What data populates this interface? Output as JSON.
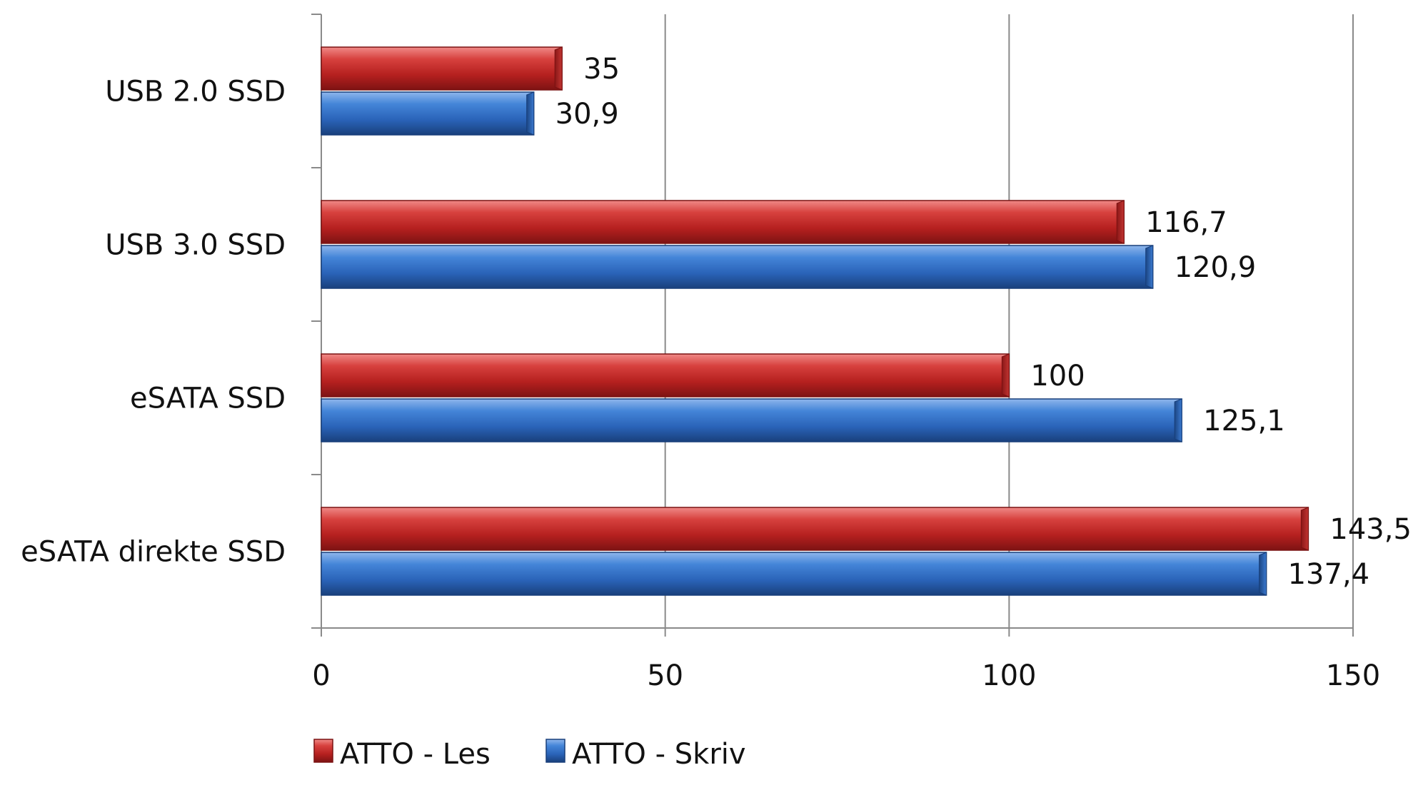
{
  "chart_data": {
    "type": "bar",
    "orientation": "horizontal",
    "style": "3d-cylinder-bars",
    "categories": [
      "USB 2.0 SSD",
      "USB 3.0 SSD",
      "eSATA SSD",
      "eSATA direkte SSD"
    ],
    "series": [
      {
        "name": "ATTO - Les",
        "color": "#c0312f",
        "values": [
          35,
          116.7,
          100,
          143.5
        ],
        "labels": [
          "35",
          "116,7",
          "100",
          "143,5"
        ]
      },
      {
        "name": "ATTO - Skriv",
        "color": "#2f6fc6",
        "values": [
          30.9,
          120.9,
          125.1,
          137.4
        ],
        "labels": [
          "30,9",
          "120,9",
          "125,1",
          "137,4"
        ]
      }
    ],
    "x_ticks": [
      "0",
      "50",
      "100",
      "150"
    ],
    "xlim": [
      0,
      150
    ],
    "grid": true,
    "legend_position": "bottom",
    "title": "",
    "xlabel": "",
    "ylabel": ""
  }
}
